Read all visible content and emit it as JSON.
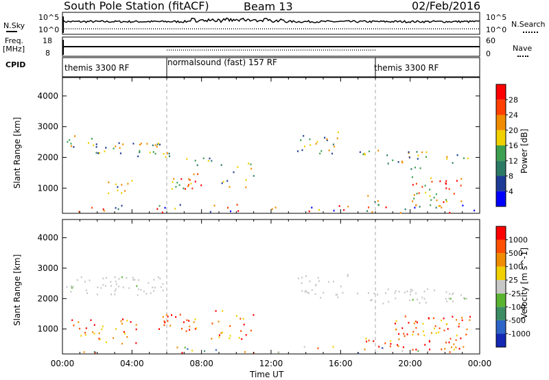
{
  "header": {
    "station": "South Pole Station (fitACF)",
    "beam": "Beam 13",
    "date": "02/Feb/2016"
  },
  "panel_labels": {
    "nsky": "N.Sky",
    "nsky_hi": "10^5",
    "nsky_lo": "10^0",
    "nsearch": "N.Search",
    "nsearch_hi": "10^5",
    "nsearch_lo": "10^0",
    "freq": "Freq.",
    "freq_unit": "[MHz]",
    "freq_hi": "18",
    "freq_lo": "8",
    "nave": "Nave",
    "nave_hi": "60",
    "nave_lo": "0",
    "cpid": "CPID"
  },
  "cpid_segments": [
    {
      "label": "themis 3300 RF",
      "start": 0
    },
    {
      "label": "normalsound (fast) 157 RF",
      "start": 6
    },
    {
      "label": "themis 3300 RF",
      "start": 18
    }
  ],
  "chart_data": [
    {
      "type": "heatmap",
      "title": "Power",
      "ylabel": "Slant Range [km]",
      "xlabel": "Time UT",
      "ylim": [
        180,
        4600
      ],
      "xlim": [
        0,
        24
      ],
      "colorbar_label": "Power [dB]",
      "colorbar_ticks": [
        "28",
        "24",
        "20",
        "16",
        "12",
        "8",
        "4"
      ],
      "colors": [
        "#0000ff",
        "#1e3c96",
        "#2d7a64",
        "#3ca050",
        "#f0d000",
        "#f08c00",
        "#ff4000",
        "#ff0000"
      ],
      "yticks": [
        "4000",
        "3000",
        "2000",
        "1000"
      ]
    },
    {
      "type": "heatmap",
      "title": "Velocity",
      "ylabel": "Slant Range [km]",
      "xlabel": "Time UT",
      "ylim": [
        180,
        4600
      ],
      "xlim": [
        0,
        24
      ],
      "colorbar_label": "Velocity [m s^-1]",
      "colorbar_ticks": [
        "1000",
        "500",
        "100",
        "25",
        "-25",
        "-100",
        "-500",
        "-1000"
      ],
      "colors": [
        "#1428b4",
        "#2d64c8",
        "#3c8c64",
        "#5ab432",
        "#c8c8c8",
        "#f0d000",
        "#f08c00",
        "#ff5000",
        "#ff0000"
      ],
      "yticks": [
        "4000",
        "3000",
        "2000",
        "1000"
      ]
    }
  ],
  "xaxis": {
    "ticks": [
      "00:00",
      "04:00",
      "08:00",
      "12:00",
      "16:00",
      "20:00",
      "00:00"
    ],
    "label": "Time UT"
  }
}
